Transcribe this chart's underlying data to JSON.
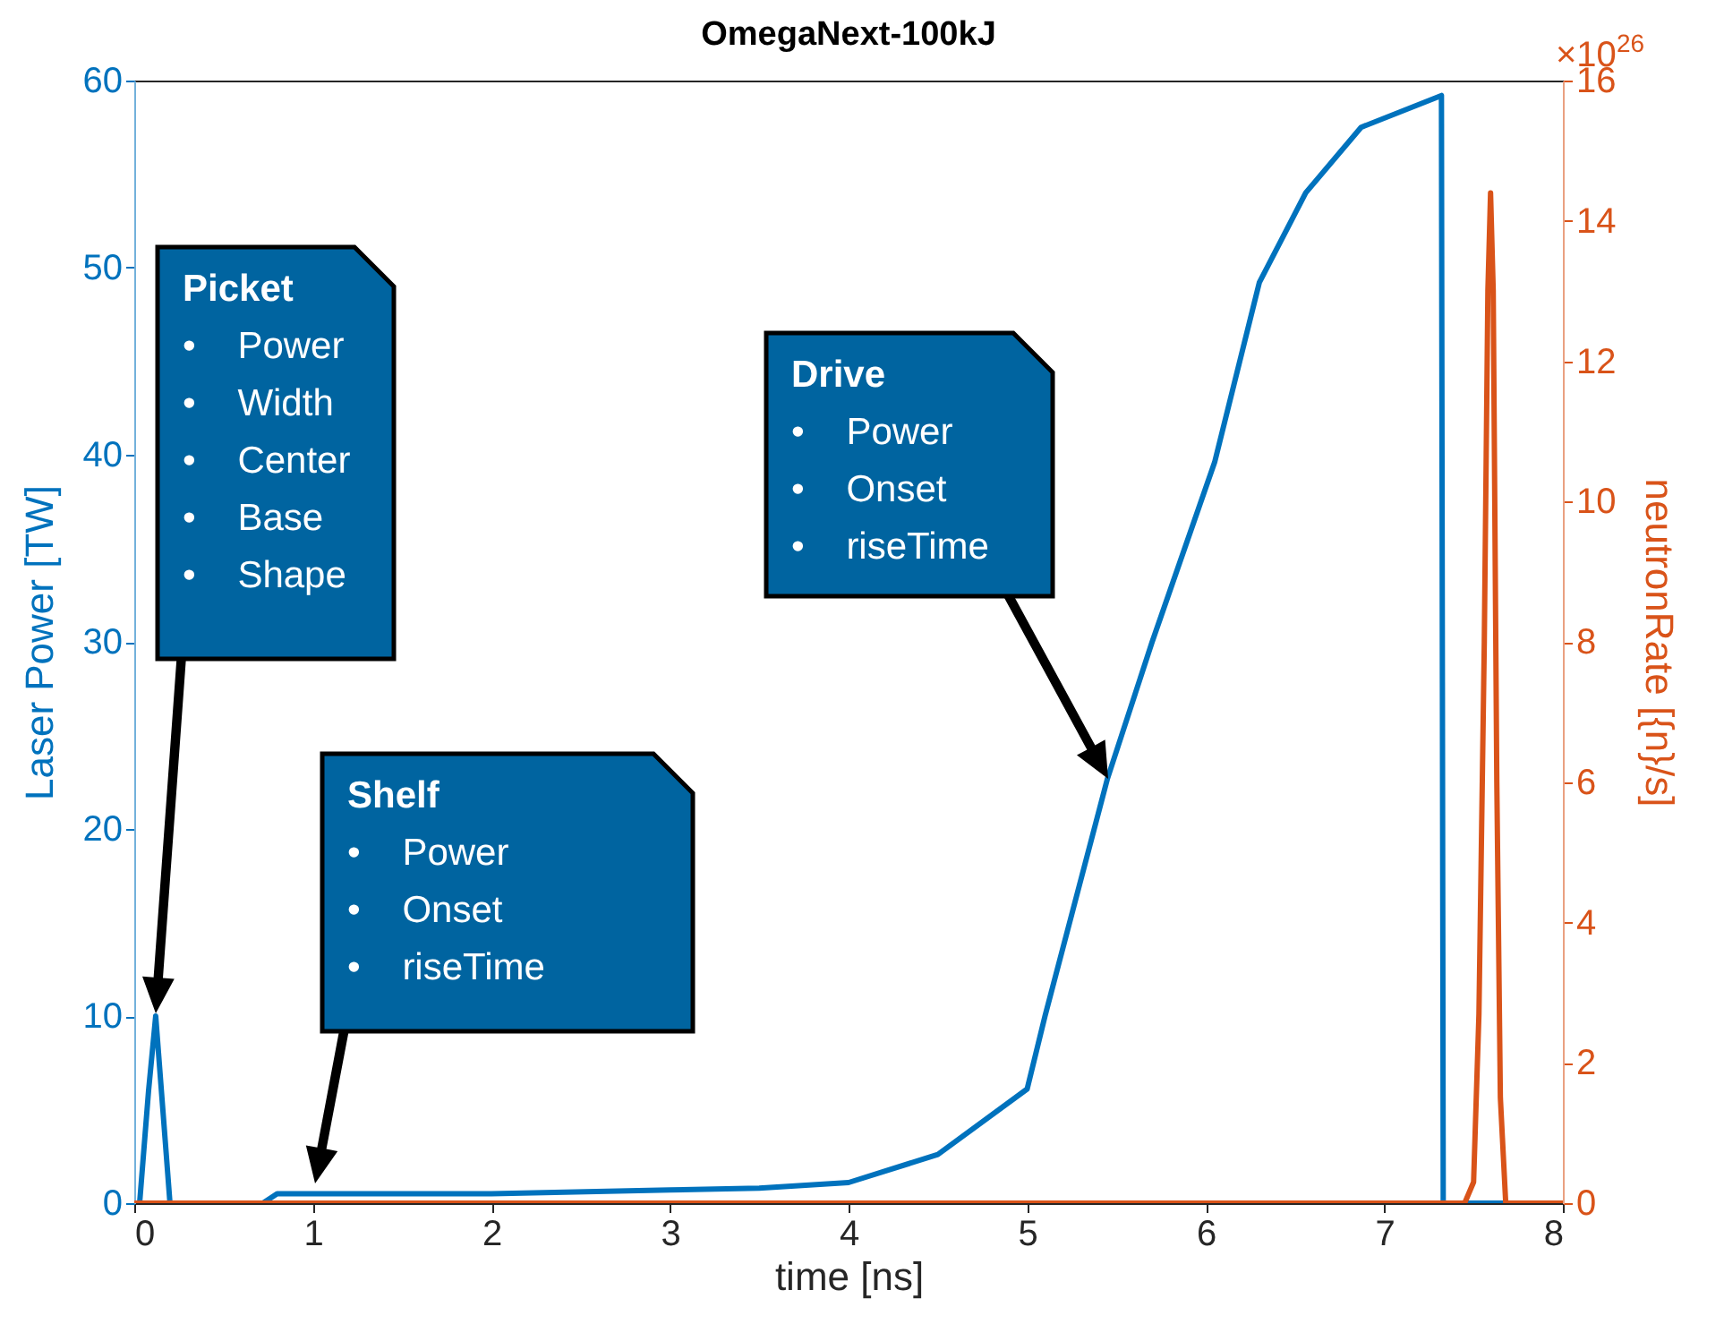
{
  "chart_data": {
    "type": "line",
    "title": "OmegaNext-100kJ",
    "xlabel": "time [ns]",
    "ylabel": "Laser Power [TW]",
    "y2label": "neutronRate [{n}/s]",
    "xlim": [
      0,
      8
    ],
    "xticks": [
      0,
      1,
      2,
      3,
      4,
      5,
      6,
      7,
      8
    ],
    "ylim": [
      0,
      60
    ],
    "yticks": [
      0,
      10,
      20,
      30,
      40,
      50,
      60
    ],
    "y2lim": [
      0,
      16
    ],
    "y2ticks": [
      0,
      2,
      4,
      6,
      8,
      10,
      12,
      14,
      16
    ],
    "grid": false,
    "marker": "none",
    "line_style": "solid",
    "series": [
      {
        "color": "#0072bd",
        "x": [
          0,
          0.03,
          0.08,
          0.12,
          0.16,
          0.2,
          0.72,
          0.8,
          1,
          2,
          3,
          3.5,
          4,
          4.5,
          5,
          5.1,
          5.45,
          5.7,
          6.05,
          6.3,
          6.56,
          6.87,
          7.32,
          7.33,
          8
        ],
        "values": [
          0,
          0,
          6,
          10,
          5,
          0,
          0,
          0.5,
          0.5,
          0.5,
          0.7,
          0.8,
          1.1,
          2.6,
          6.1,
          10,
          22.7,
          30,
          39.6,
          49.2,
          54,
          57.5,
          59.2,
          0,
          0
        ]
      },
      {
        "color": "#d95319",
        "axis": "y2",
        "x": [
          0,
          7.45,
          7.5,
          7.53,
          7.56,
          7.58,
          7.595,
          7.61,
          7.63,
          7.65,
          7.68,
          8
        ],
        "values": [
          0,
          0,
          0.3,
          2.7,
          8,
          13,
          14.4,
          13,
          6,
          1.5,
          0,
          0
        ]
      }
    ],
    "annotations": [
      "×10$^{26}$",
      "Picket\n•    Power\n•    Width\n•    Center\n•    Base\n•    Shape",
      "Shelf\n•    Power\n•    Onset\n•    riseTime",
      "Drive\n•    Power\n•    Onset\n•    riseTime"
    ]
  }
}
